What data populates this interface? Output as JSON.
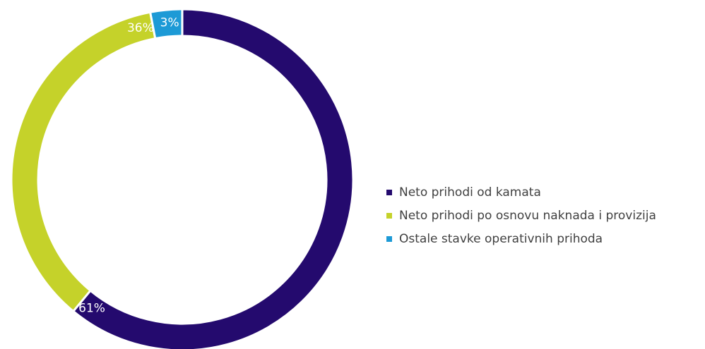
{
  "chart_data": {
    "type": "pie",
    "title": "",
    "donut": true,
    "legend_position": "right",
    "slices": [
      {
        "label": "Neto prihodi od kamata",
        "value": 61,
        "display": "61%",
        "color": "#240a6e"
      },
      {
        "label": "Neto prihodi po osnovu naknada i provizija",
        "value": 36,
        "display": "36%",
        "color": "#c5d22a"
      },
      {
        "label": "Ostale stavke operativnih prihoda",
        "value": 3,
        "display": "3%",
        "color": "#1d9ad6"
      }
    ]
  }
}
